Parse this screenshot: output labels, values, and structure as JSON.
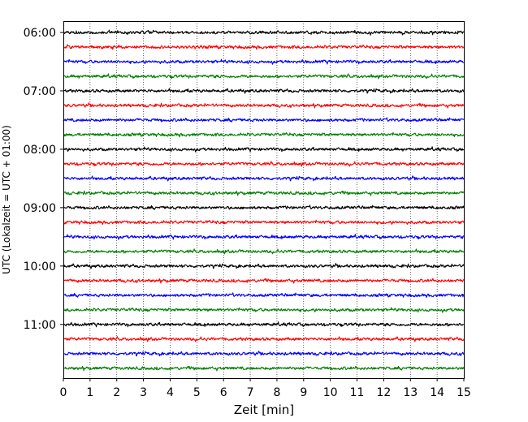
{
  "chart_data": {
    "type": "line",
    "title": "",
    "xlabel": "Zeit  [min]",
    "ylabel": "UTC (Lokalzeit = UTC + 01:00)",
    "xlim": [
      0,
      15
    ],
    "x_ticks": [
      "0",
      "1",
      "2",
      "3",
      "4",
      "5",
      "6",
      "7",
      "8",
      "9",
      "10",
      "11",
      "12",
      "13",
      "14",
      "15"
    ],
    "y_ticks": [
      "06:00",
      "07:00",
      "08:00",
      "09:00",
      "10:00",
      "11:00"
    ],
    "grid": "vertical dotted at each minute",
    "minutes_per_trace": 15,
    "trace_start": "06:00",
    "trace_count": 24,
    "trace_colors": [
      "#000000",
      "#ff0000",
      "#0000ff",
      "#008000"
    ],
    "legend": "none"
  }
}
